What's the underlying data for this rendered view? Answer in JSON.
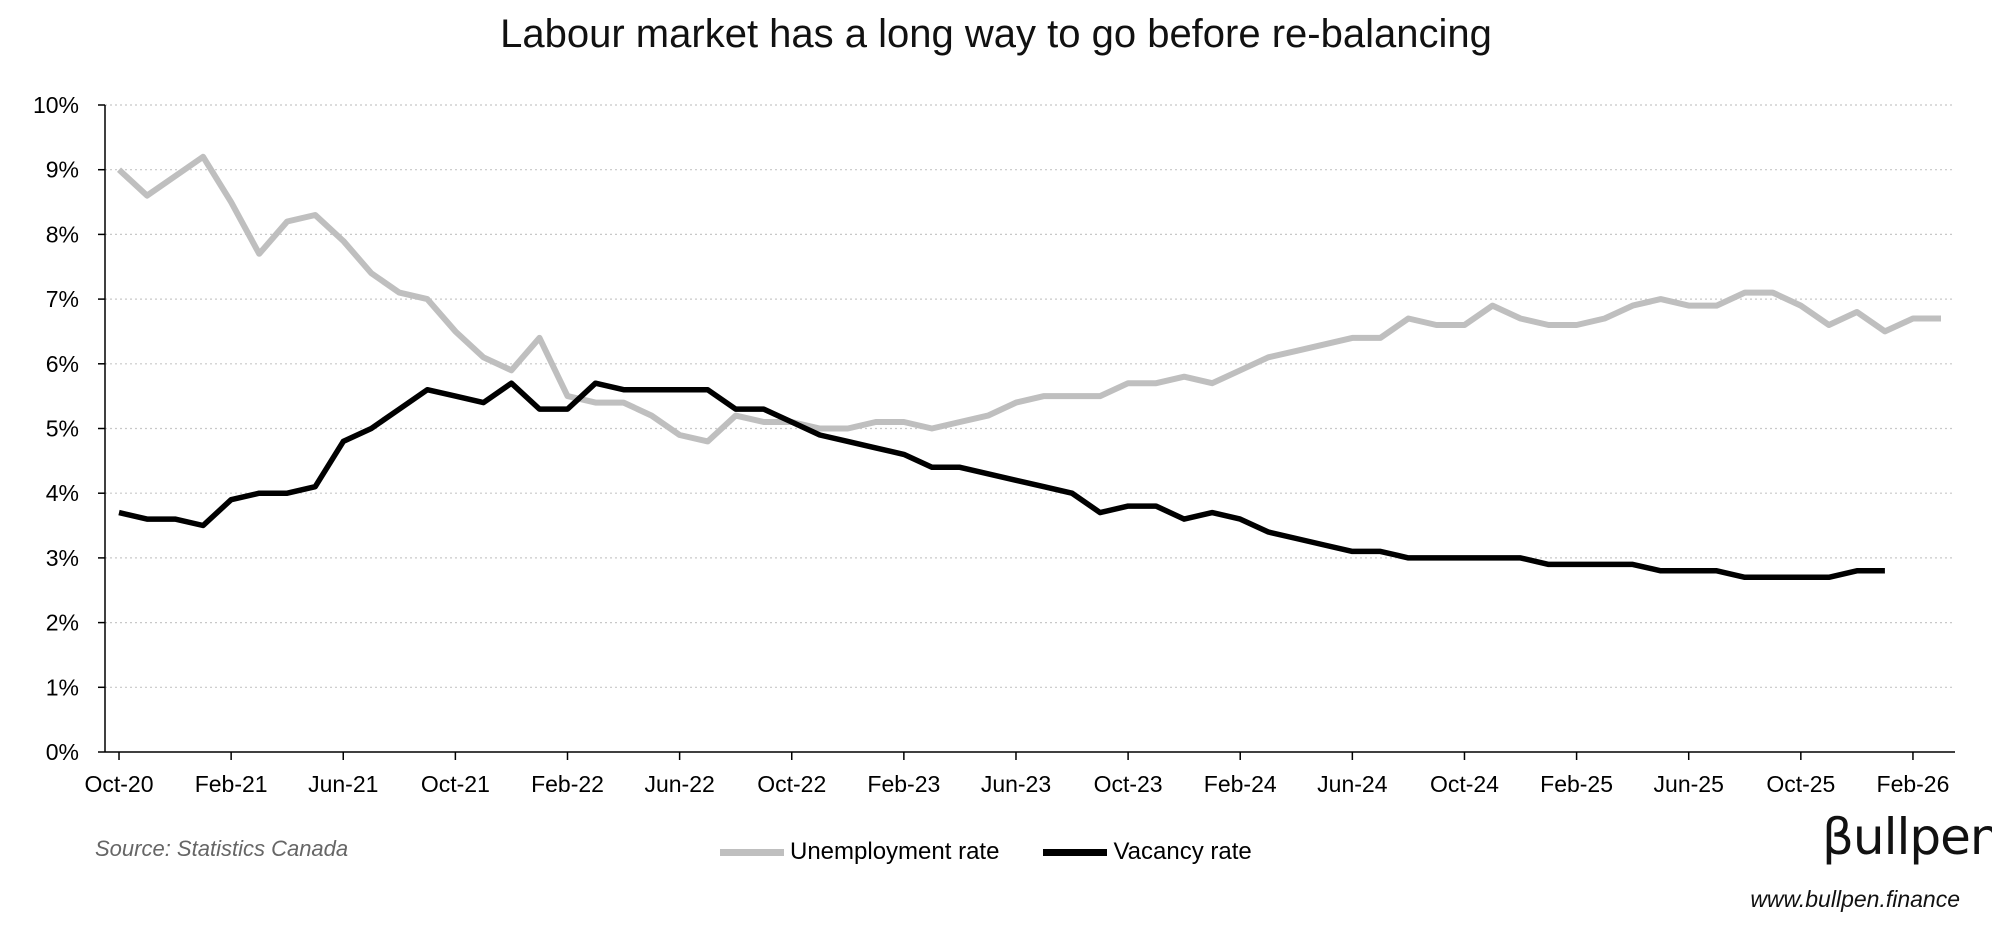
{
  "chart_data": {
    "type": "line",
    "title": "Labour market has a long way to go before re-balancing",
    "xlabel": "",
    "ylabel": "",
    "ylim": [
      0,
      10
    ],
    "y_ticks": [
      "0%",
      "1%",
      "2%",
      "3%",
      "4%",
      "5%",
      "6%",
      "7%",
      "8%",
      "9%",
      "10%"
    ],
    "x_ticks": [
      "Oct-20",
      "Feb-21",
      "Jun-21",
      "Oct-21",
      "Feb-22",
      "Jun-22",
      "Oct-22",
      "Feb-23",
      "Jun-23",
      "Oct-23",
      "Feb-24",
      "Jun-24",
      "Oct-24",
      "Feb-25",
      "Jun-25",
      "Oct-25",
      "Feb-26"
    ],
    "x_range": [
      "Oct-20",
      "Mar-26"
    ],
    "grid": "horizontal dotted",
    "legend_position": "bottom",
    "series": [
      {
        "name": "Unemployment rate",
        "color": "#bfbfbf",
        "start": "Oct-20",
        "values": [
          9.0,
          8.6,
          8.9,
          9.2,
          8.5,
          7.7,
          8.2,
          8.3,
          7.9,
          7.4,
          7.1,
          7.0,
          6.5,
          6.1,
          5.9,
          6.4,
          5.5,
          5.4,
          5.4,
          5.2,
          4.9,
          4.8,
          5.2,
          5.1,
          5.1,
          5.0,
          5.0,
          5.1,
          5.1,
          5.0,
          5.1,
          5.2,
          5.4,
          5.5,
          5.5,
          5.5,
          5.7,
          5.7,
          5.8,
          5.7,
          5.9,
          6.1,
          6.2,
          6.3,
          6.4,
          6.4,
          6.7,
          6.6,
          6.6,
          6.9,
          6.7,
          6.6,
          6.6,
          6.7,
          6.9,
          7.0,
          6.9,
          6.9,
          7.1,
          7.1,
          6.9,
          6.6,
          6.8,
          6.5,
          6.7,
          6.7
        ]
      },
      {
        "name": "Vacancy rate",
        "color": "#000000",
        "start": "Oct-20",
        "values": [
          3.7,
          3.6,
          3.6,
          3.5,
          3.9,
          4.0,
          4.0,
          4.1,
          4.8,
          5.0,
          5.3,
          5.6,
          5.5,
          5.4,
          5.7,
          5.3,
          5.3,
          5.7,
          5.6,
          5.6,
          5.6,
          5.6,
          5.3,
          5.3,
          5.1,
          4.9,
          4.8,
          4.7,
          4.6,
          4.4,
          4.4,
          4.3,
          4.2,
          4.1,
          4.0,
          3.7,
          3.8,
          3.8,
          3.6,
          3.7,
          3.6,
          3.4,
          3.3,
          3.2,
          3.1,
          3.1,
          3.0,
          3.0,
          3.0,
          3.0,
          3.0,
          2.9,
          2.9,
          2.9,
          2.9,
          2.8,
          2.8,
          2.8,
          2.7,
          2.7,
          2.7,
          2.7,
          2.8,
          2.8
        ]
      }
    ]
  },
  "footer": {
    "source": "Source: Statistics Canada",
    "brand": "βullpen",
    "website": "www.bullpen.finance"
  }
}
